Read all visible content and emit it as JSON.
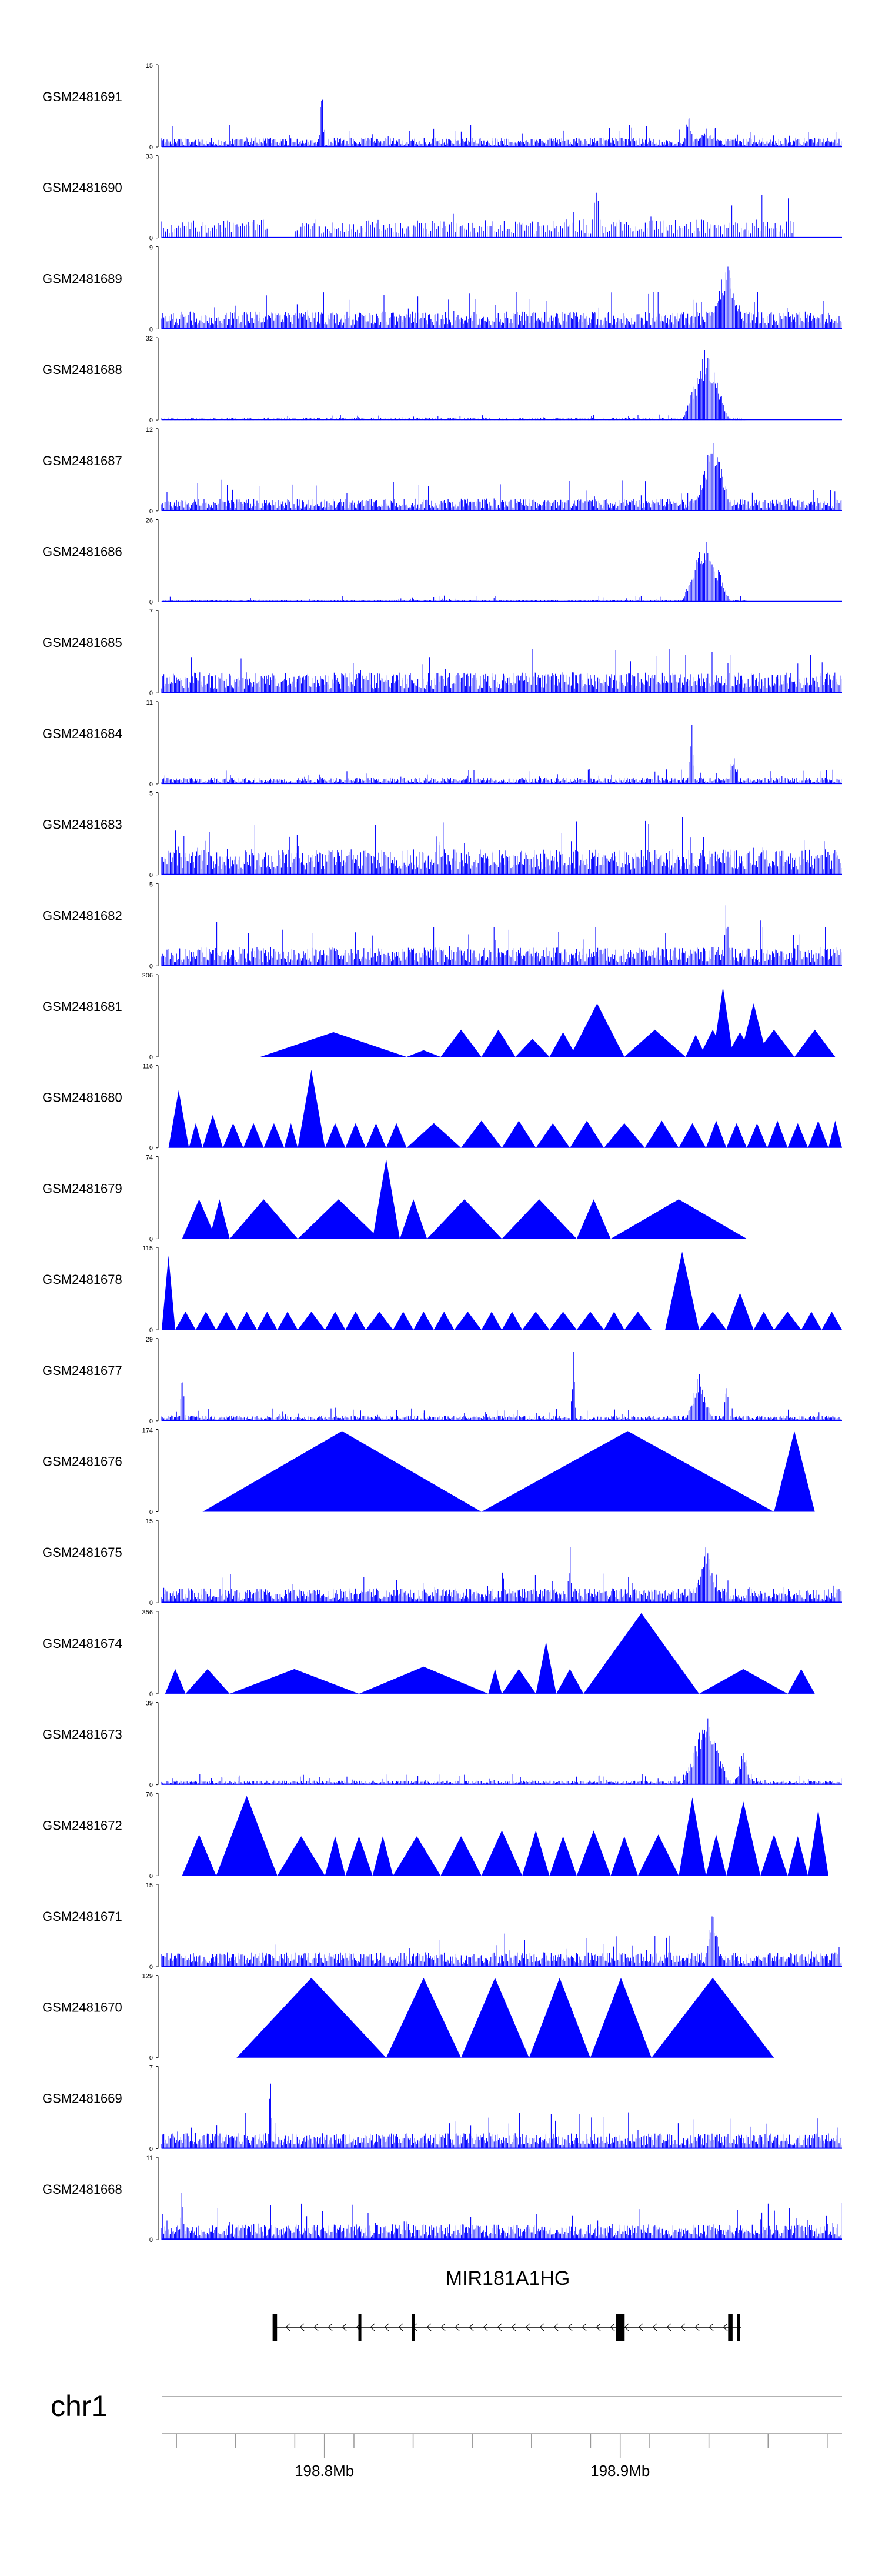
{
  "chart_data": {
    "type": "genome-browser-coverage",
    "chromosome": "chr1",
    "region_start_mb": 198.745,
    "region_end_mb": 198.975,
    "axis_ticks": [
      {
        "pos": 198.8,
        "label": "198.8Mb"
      },
      {
        "pos": 198.9,
        "label": "198.9Mb"
      }
    ],
    "track_color": "#0000ff",
    "gene": {
      "name": "MIR181A1HG",
      "strand": "-",
      "start": 198.783,
      "end": 198.941,
      "exons": [
        [
          198.7825,
          198.784
        ],
        [
          198.8115,
          198.8125
        ],
        [
          198.8295,
          198.8305
        ],
        [
          198.8985,
          198.9015
        ],
        [
          198.9365,
          198.938
        ],
        [
          198.9395,
          198.9405
        ]
      ]
    },
    "tracks": [
      {
        "name": "GSM2481691",
        "ymax": 15,
        "style": "dense",
        "seed": 11,
        "base": 0.09,
        "spike": 0.28,
        "peaks": [
          {
            "c": 0.235,
            "w": 0.004,
            "h": 0.97
          },
          {
            "c": 0.775,
            "w": 0.006,
            "h": 0.62
          },
          {
            "c": 0.8,
            "w": 0.03,
            "h": 0.2
          }
        ],
        "gaps": []
      },
      {
        "name": "GSM2481690",
        "ymax": 33,
        "style": "sparse",
        "seed": 12,
        "base": 0.18,
        "spike": 0.55,
        "peaks": [
          {
            "c": 0.64,
            "w": 0.004,
            "h": 0.93
          }
        ],
        "gaps": [
          [
            0.155,
            0.195
          ],
          [
            0.93,
            1.0
          ]
        ]
      },
      {
        "name": "GSM2481689",
        "ymax": 9,
        "style": "dense",
        "seed": 13,
        "base": 0.17,
        "spike": 0.45,
        "peaks": [
          {
            "c": 0.83,
            "w": 0.03,
            "h": 0.85
          }
        ],
        "gaps": []
      },
      {
        "name": "GSM2481688",
        "ymax": 32,
        "style": "dense",
        "seed": 14,
        "base": 0.02,
        "spike": 0.07,
        "peaks": [
          {
            "c": 0.8,
            "w": 0.035,
            "h": 0.9
          }
        ],
        "gaps": [
          [
            0.86,
            1.0
          ]
        ]
      },
      {
        "name": "GSM2481687",
        "ymax": 12,
        "style": "dense",
        "seed": 15,
        "base": 0.12,
        "spike": 0.38,
        "peaks": [
          {
            "c": 0.81,
            "w": 0.03,
            "h": 0.92
          }
        ],
        "gaps": []
      },
      {
        "name": "GSM2481686",
        "ymax": 26,
        "style": "dense",
        "seed": 16,
        "base": 0.02,
        "spike": 0.08,
        "peaks": [
          {
            "c": 0.8,
            "w": 0.035,
            "h": 0.86
          }
        ],
        "gaps": [
          [
            0.86,
            1.0
          ]
        ]
      },
      {
        "name": "GSM2481685",
        "ymax": 7,
        "style": "dense",
        "seed": 17,
        "base": 0.2,
        "spike": 0.55,
        "peaks": [],
        "gaps": []
      },
      {
        "name": "GSM2481684",
        "ymax": 11,
        "style": "dense",
        "seed": 18,
        "base": 0.06,
        "spike": 0.18,
        "peaks": [
          {
            "c": 0.779,
            "w": 0.005,
            "h": 0.95
          },
          {
            "c": 0.84,
            "w": 0.008,
            "h": 0.4
          }
        ],
        "gaps": []
      },
      {
        "name": "GSM2481683",
        "ymax": 5,
        "style": "dense",
        "seed": 19,
        "base": 0.25,
        "spike": 0.7,
        "peaks": [],
        "gaps": []
      },
      {
        "name": "GSM2481682",
        "ymax": 5,
        "style": "dense",
        "seed": 20,
        "base": 0.18,
        "spike": 0.55,
        "peaks": [
          {
            "c": 0.83,
            "w": 0.005,
            "h": 0.95
          }
        ],
        "gaps": []
      },
      {
        "name": "GSM2481681",
        "ymax": 206,
        "style": "tri",
        "seed": 21,
        "tris": [
          [
            0.145,
            0.36,
            0.3
          ],
          [
            0.36,
            0.41,
            0.08
          ],
          [
            0.41,
            0.47,
            0.33
          ],
          [
            0.47,
            0.52,
            0.33
          ],
          [
            0.52,
            0.57,
            0.22
          ],
          [
            0.57,
            0.61,
            0.3
          ],
          [
            0.6,
            0.68,
            0.65
          ],
          [
            0.68,
            0.77,
            0.33
          ],
          [
            0.77,
            0.8,
            0.27
          ],
          [
            0.79,
            0.83,
            0.33
          ],
          [
            0.81,
            0.84,
            0.85
          ],
          [
            0.83,
            0.87,
            0.3
          ],
          [
            0.85,
            0.89,
            0.65
          ],
          [
            0.87,
            0.93,
            0.33
          ],
          [
            0.93,
            0.99,
            0.33
          ]
        ]
      },
      {
        "name": "GSM2481680",
        "ymax": 116,
        "style": "tri",
        "seed": 22,
        "tris": [
          [
            0.01,
            0.04,
            0.7
          ],
          [
            0.04,
            0.06,
            0.3
          ],
          [
            0.06,
            0.09,
            0.4
          ],
          [
            0.09,
            0.12,
            0.3
          ],
          [
            0.12,
            0.15,
            0.3
          ],
          [
            0.15,
            0.18,
            0.3
          ],
          [
            0.18,
            0.2,
            0.3
          ],
          [
            0.2,
            0.24,
            0.95
          ],
          [
            0.24,
            0.27,
            0.3
          ],
          [
            0.27,
            0.3,
            0.3
          ],
          [
            0.3,
            0.33,
            0.3
          ],
          [
            0.33,
            0.36,
            0.3
          ],
          [
            0.36,
            0.44,
            0.3
          ],
          [
            0.44,
            0.5,
            0.33
          ],
          [
            0.5,
            0.55,
            0.33
          ],
          [
            0.55,
            0.6,
            0.3
          ],
          [
            0.6,
            0.65,
            0.33
          ],
          [
            0.65,
            0.71,
            0.3
          ],
          [
            0.71,
            0.76,
            0.33
          ],
          [
            0.76,
            0.8,
            0.3
          ],
          [
            0.8,
            0.83,
            0.33
          ],
          [
            0.83,
            0.86,
            0.3
          ],
          [
            0.86,
            0.89,
            0.3
          ],
          [
            0.89,
            0.92,
            0.33
          ],
          [
            0.92,
            0.95,
            0.3
          ],
          [
            0.95,
            0.98,
            0.33
          ],
          [
            0.98,
            1.0,
            0.33
          ]
        ]
      },
      {
        "name": "GSM2481679",
        "ymax": 74,
        "style": "tri",
        "seed": 23,
        "tris": [
          [
            0.03,
            0.08,
            0.48
          ],
          [
            0.07,
            0.1,
            0.48
          ],
          [
            0.1,
            0.2,
            0.48
          ],
          [
            0.2,
            0.32,
            0.48
          ],
          [
            0.31,
            0.35,
            0.97
          ],
          [
            0.35,
            0.39,
            0.48
          ],
          [
            0.39,
            0.5,
            0.48
          ],
          [
            0.5,
            0.61,
            0.48
          ],
          [
            0.61,
            0.66,
            0.48
          ],
          [
            0.66,
            0.86,
            0.48
          ]
        ]
      },
      {
        "name": "GSM2481678",
        "ymax": 115,
        "style": "tri",
        "seed": 24,
        "tris": [
          [
            0.0,
            0.02,
            0.9
          ],
          [
            0.02,
            0.05,
            0.22
          ],
          [
            0.05,
            0.08,
            0.22
          ],
          [
            0.08,
            0.11,
            0.22
          ],
          [
            0.11,
            0.14,
            0.22
          ],
          [
            0.14,
            0.17,
            0.22
          ],
          [
            0.17,
            0.2,
            0.22
          ],
          [
            0.2,
            0.24,
            0.22
          ],
          [
            0.24,
            0.27,
            0.22
          ],
          [
            0.27,
            0.3,
            0.22
          ],
          [
            0.3,
            0.34,
            0.22
          ],
          [
            0.34,
            0.37,
            0.22
          ],
          [
            0.37,
            0.4,
            0.22
          ],
          [
            0.4,
            0.43,
            0.22
          ],
          [
            0.43,
            0.47,
            0.22
          ],
          [
            0.47,
            0.5,
            0.22
          ],
          [
            0.5,
            0.53,
            0.22
          ],
          [
            0.53,
            0.57,
            0.22
          ],
          [
            0.57,
            0.61,
            0.22
          ],
          [
            0.61,
            0.65,
            0.22
          ],
          [
            0.65,
            0.68,
            0.22
          ],
          [
            0.68,
            0.72,
            0.22
          ],
          [
            0.74,
            0.79,
            0.95
          ],
          [
            0.79,
            0.83,
            0.22
          ],
          [
            0.83,
            0.87,
            0.45
          ],
          [
            0.87,
            0.9,
            0.22
          ],
          [
            0.9,
            0.94,
            0.22
          ],
          [
            0.94,
            0.97,
            0.22
          ],
          [
            0.97,
            1.0,
            0.22
          ]
        ]
      },
      {
        "name": "GSM2481677",
        "ymax": 29,
        "style": "dense",
        "seed": 25,
        "base": 0.05,
        "spike": 0.16,
        "peaks": [
          {
            "c": 0.03,
            "w": 0.004,
            "h": 0.9
          },
          {
            "c": 0.605,
            "w": 0.004,
            "h": 0.95
          },
          {
            "c": 0.79,
            "w": 0.02,
            "h": 0.6
          },
          {
            "c": 0.83,
            "w": 0.004,
            "h": 0.7
          }
        ],
        "gaps": []
      },
      {
        "name": "GSM2481676",
        "ymax": 174,
        "style": "tri",
        "seed": 26,
        "tris": [
          [
            0.06,
            0.47,
            0.98
          ],
          [
            0.47,
            0.9,
            0.98
          ],
          [
            0.9,
            0.96,
            0.98
          ]
        ]
      },
      {
        "name": "GSM2481675",
        "ymax": 15,
        "style": "dense",
        "seed": 27,
        "base": 0.14,
        "spike": 0.4,
        "peaks": [
          {
            "c": 0.6,
            "w": 0.004,
            "h": 0.82
          },
          {
            "c": 0.8,
            "w": 0.02,
            "h": 0.7
          }
        ],
        "gaps": []
      },
      {
        "name": "GSM2481674",
        "ymax": 356,
        "style": "tri",
        "seed": 27,
        "tris": [
          [
            0.005,
            0.035,
            0.3
          ],
          [
            0.035,
            0.1,
            0.3
          ],
          [
            0.1,
            0.29,
            0.3
          ],
          [
            0.29,
            0.48,
            0.33
          ],
          [
            0.48,
            0.5,
            0.3
          ],
          [
            0.5,
            0.55,
            0.3
          ],
          [
            0.55,
            0.58,
            0.63
          ],
          [
            0.58,
            0.62,
            0.3
          ],
          [
            0.62,
            0.79,
            0.98
          ],
          [
            0.79,
            0.92,
            0.3
          ],
          [
            0.92,
            0.96,
            0.3
          ]
        ]
      },
      {
        "name": "GSM2481673",
        "ymax": 39,
        "style": "dense",
        "seed": 28,
        "base": 0.04,
        "spike": 0.13,
        "peaks": [
          {
            "c": 0.8,
            "w": 0.035,
            "h": 0.88
          },
          {
            "c": 0.855,
            "w": 0.012,
            "h": 0.45
          }
        ],
        "gaps": []
      },
      {
        "name": "GSM2481672",
        "ymax": 76,
        "style": "tri",
        "seed": 29,
        "tris": [
          [
            0.03,
            0.08,
            0.5
          ],
          [
            0.08,
            0.17,
            0.97
          ],
          [
            0.17,
            0.24,
            0.48
          ],
          [
            0.24,
            0.27,
            0.48
          ],
          [
            0.27,
            0.31,
            0.48
          ],
          [
            0.31,
            0.34,
            0.48
          ],
          [
            0.34,
            0.41,
            0.48
          ],
          [
            0.41,
            0.47,
            0.48
          ],
          [
            0.47,
            0.53,
            0.55
          ],
          [
            0.53,
            0.57,
            0.55
          ],
          [
            0.57,
            0.61,
            0.48
          ],
          [
            0.61,
            0.66,
            0.55
          ],
          [
            0.66,
            0.7,
            0.48
          ],
          [
            0.7,
            0.76,
            0.5
          ],
          [
            0.76,
            0.8,
            0.95
          ],
          [
            0.8,
            0.83,
            0.5
          ],
          [
            0.83,
            0.88,
            0.9
          ],
          [
            0.88,
            0.92,
            0.5
          ],
          [
            0.92,
            0.95,
            0.48
          ],
          [
            0.95,
            0.98,
            0.8
          ]
        ]
      },
      {
        "name": "GSM2481671",
        "ymax": 15,
        "style": "dense",
        "seed": 30,
        "base": 0.14,
        "spike": 0.42,
        "peaks": [
          {
            "c": 0.81,
            "w": 0.012,
            "h": 0.88
          }
        ],
        "gaps": []
      },
      {
        "name": "GSM2481670",
        "ymax": 129,
        "style": "tri",
        "seed": 31,
        "tris": [
          [
            0.11,
            0.33,
            0.97
          ],
          [
            0.33,
            0.44,
            0.97
          ],
          [
            0.44,
            0.54,
            0.97
          ],
          [
            0.54,
            0.63,
            0.97
          ],
          [
            0.63,
            0.72,
            0.97
          ],
          [
            0.72,
            0.9,
            0.97
          ]
        ]
      },
      {
        "name": "GSM2481669",
        "ymax": 7,
        "style": "dense",
        "seed": 32,
        "base": 0.15,
        "spike": 0.45,
        "peaks": [
          {
            "c": 0.16,
            "w": 0.004,
            "h": 0.92
          }
        ],
        "gaps": []
      },
      {
        "name": "GSM2481668",
        "ymax": 11,
        "style": "dense",
        "seed": 33,
        "base": 0.15,
        "spike": 0.45,
        "peaks": [
          {
            "c": 0.03,
            "w": 0.004,
            "h": 0.88
          }
        ],
        "gaps": []
      }
    ]
  }
}
